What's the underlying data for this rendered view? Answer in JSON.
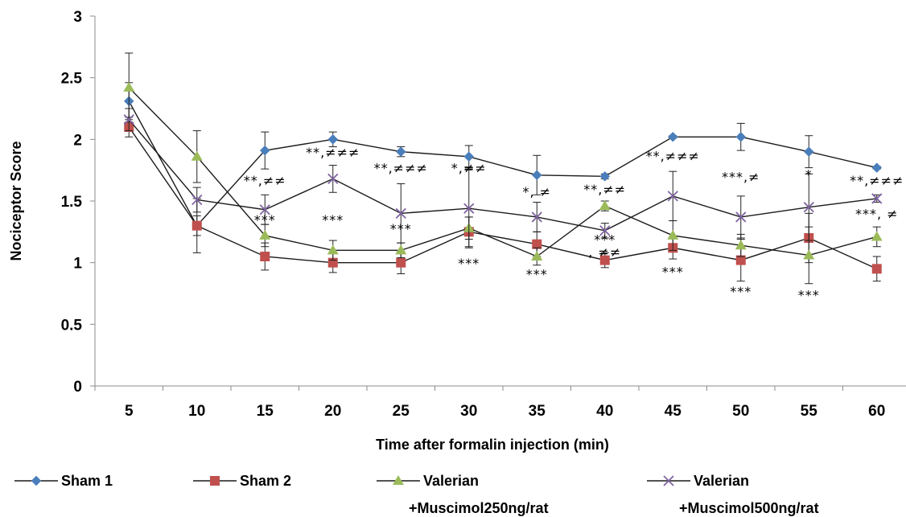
{
  "chart_data": {
    "type": "line",
    "title": "",
    "xlabel": "Time after formalin injection (min)",
    "ylabel": "Nociceptor Score",
    "ylim": [
      0,
      3
    ],
    "yticks": [
      "0",
      "0.5",
      "1",
      "1.5",
      "2",
      "2.5",
      "3"
    ],
    "categories": [
      "5",
      "10",
      "15",
      "20",
      "25",
      "30",
      "35",
      "40",
      "45",
      "50",
      "55",
      "60"
    ],
    "grid": false,
    "legend_position": "bottom",
    "series": [
      {
        "name": "Sham 1",
        "legend_lines": [
          "Sham 1"
        ],
        "color": "#4a7ebb",
        "marker": "diamond",
        "values": [
          2.31,
          1.3,
          1.91,
          2.0,
          1.9,
          1.86,
          1.71,
          1.7,
          2.02,
          2.02,
          1.9,
          1.77
        ],
        "errors": [
          0.15,
          0.08,
          0.15,
          0.06,
          0.04,
          0.09,
          0.16,
          0.02,
          0.01,
          0.11,
          0.13,
          0.01
        ]
      },
      {
        "name": "Sham 2",
        "legend_lines": [
          "Sham 2"
        ],
        "color": "#c0504d",
        "marker": "square",
        "values": [
          2.1,
          1.3,
          1.05,
          1.0,
          1.0,
          1.25,
          1.15,
          1.02,
          1.12,
          1.02,
          1.2,
          0.95
        ],
        "errors": [
          0.08,
          0.22,
          0.11,
          0.08,
          0.09,
          0.12,
          0.1,
          0.06,
          0.09,
          0.17,
          0.2,
          0.1
        ]
      },
      {
        "name": "Valerian +Muscimol250ng/rat",
        "legend_lines": [
          "Valerian",
          "+Muscimol250ng/rat"
        ],
        "color": "#9bbb59",
        "marker": "triangle",
        "values": [
          2.42,
          1.86,
          1.22,
          1.1,
          1.1,
          1.28,
          1.05,
          1.46,
          1.22,
          1.14,
          1.06,
          1.21
        ],
        "errors": [
          0.28,
          0.21,
          0.09,
          0.08,
          0.06,
          0.09,
          0.07,
          0.04,
          0.12,
          0.09,
          0.23,
          0.08
        ]
      },
      {
        "name": "Valerian +Muscimol500ng/rat",
        "legend_lines": [
          "Valerian",
          "+Muscimol500ng/rat"
        ],
        "color": "#8064a2",
        "marker": "x",
        "values": [
          2.16,
          1.51,
          1.43,
          1.68,
          1.4,
          1.44,
          1.37,
          1.26,
          1.54,
          1.37,
          1.45,
          1.52
        ],
        "errors": [
          0.09,
          0.1,
          0.12,
          0.11,
          0.24,
          0.32,
          0.12,
          0.06,
          0.2,
          0.17,
          0.27,
          0.03
        ]
      }
    ],
    "annotations": [
      {
        "text": "**,≠≠",
        "x": "15",
        "y": 1.63
      },
      {
        "text": "***",
        "x": "15",
        "y": 1.31
      },
      {
        "text": "**,≠≠≠",
        "x": "20",
        "y": 1.86
      },
      {
        "text": "***",
        "x": "20",
        "y": 1.31
      },
      {
        "text": "**,≠≠≠",
        "x": "25",
        "y": 1.73
      },
      {
        "text": "***",
        "x": "25",
        "y": 1.24
      },
      {
        "text": "*,≠≠",
        "x": "30",
        "y": 1.73
      },
      {
        "text": "***",
        "x": "30",
        "y": 0.96
      },
      {
        "text": "*, ≠",
        "x": "35",
        "y": 1.54
      },
      {
        "text": "***",
        "x": "35",
        "y": 0.87
      },
      {
        "text": "**,≠≠",
        "x": "40",
        "y": 1.56
      },
      {
        "text": "***",
        "x": "40",
        "y": 1.15
      },
      {
        "text": ", ≠≠",
        "x": "40",
        "y": 1.05
      },
      {
        "text": "**,≠≠≠",
        "x": "45",
        "y": 1.83
      },
      {
        "text": "***",
        "x": "45",
        "y": 0.89
      },
      {
        "text": "***,≠",
        "x": "50",
        "y": 1.66
      },
      {
        "text": "***",
        "x": "50",
        "y": 0.73
      },
      {
        "text": "*",
        "x": "55",
        "y": 1.68
      },
      {
        "text": "***",
        "x": "55",
        "y": 0.7
      },
      {
        "text": "**,≠≠≠",
        "x": "60",
        "y": 1.63
      },
      {
        "text": "***, ≠",
        "x": "60",
        "y": 1.36
      }
    ]
  }
}
